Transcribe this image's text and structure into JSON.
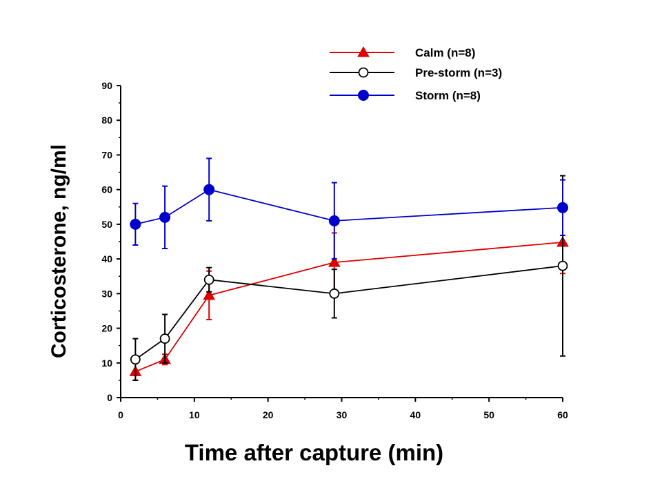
{
  "chart_data": {
    "type": "line",
    "xlabel": "Time after capture (min)",
    "ylabel": "Corticosterone, ng/ml",
    "xlim": [
      0,
      60
    ],
    "ylim": [
      0,
      90
    ],
    "xticks": [
      0,
      10,
      20,
      30,
      40,
      50,
      60
    ],
    "yticks": [
      0,
      10,
      20,
      30,
      40,
      50,
      60,
      70,
      80,
      90
    ],
    "grid": false,
    "legend_position": "top-right",
    "series": [
      {
        "name": "Calm (n=8)",
        "color": "#dd0000",
        "marker": "filled-triangle",
        "points": [
          {
            "x": 2,
            "y": 7.5,
            "err_low": 2.5,
            "err_high": 2.5
          },
          {
            "x": 6,
            "y": 11,
            "err_low": 1.5,
            "err_high": 1.5
          },
          {
            "x": 12,
            "y": 29.5,
            "err_low": 7,
            "err_high": 7
          },
          {
            "x": 29,
            "y": 39,
            "err_low": 8.5,
            "err_high": 8.5
          },
          {
            "x": 60,
            "y": 44.8,
            "err_low": 9,
            "err_high": 9
          }
        ]
      },
      {
        "name": "Pre-storm (n=3)",
        "color": "#000000",
        "marker": "open-circle",
        "points": [
          {
            "x": 2,
            "y": 11,
            "err_low": 6,
            "err_high": 6
          },
          {
            "x": 6,
            "y": 17,
            "err_low": 7,
            "err_high": 7
          },
          {
            "x": 12,
            "y": 34,
            "err_low": 3.5,
            "err_high": 3.5
          },
          {
            "x": 29,
            "y": 30,
            "err_low": 7,
            "err_high": 7
          },
          {
            "x": 60,
            "y": 38,
            "err_low": 26,
            "err_high": 26
          }
        ]
      },
      {
        "name": "Storm (n=8)",
        "color": "#0000cc",
        "marker": "filled-circle",
        "points": [
          {
            "x": 2,
            "y": 50,
            "err_low": 6,
            "err_high": 6
          },
          {
            "x": 6,
            "y": 52,
            "err_low": 9,
            "err_high": 9
          },
          {
            "x": 12,
            "y": 60,
            "err_low": 9,
            "err_high": 9
          },
          {
            "x": 29,
            "y": 51,
            "err_low": 11,
            "err_high": 11
          },
          {
            "x": 60,
            "y": 54.8,
            "err_low": 8,
            "err_high": 8
          }
        ]
      }
    ]
  }
}
